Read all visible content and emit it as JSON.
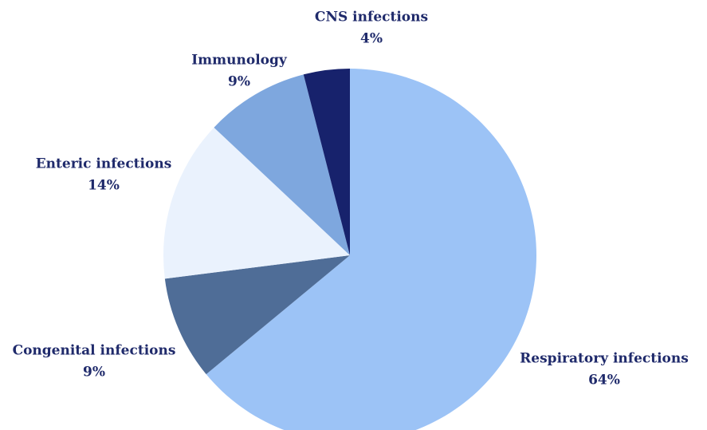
{
  "chart_data": {
    "type": "pie",
    "categories": [
      "Respiratory infections",
      "Congenital infections",
      "Enteric infections",
      "Immunology",
      "CNS infections"
    ],
    "values": [
      64,
      9,
      14,
      9,
      4
    ],
    "value_labels": [
      "64%",
      "9%",
      "14%",
      "9%",
      "4%"
    ],
    "colors": [
      "#9cc3f6",
      "#4f6d97",
      "#eaf2fd",
      "#7ea7de",
      "#17226c"
    ]
  }
}
